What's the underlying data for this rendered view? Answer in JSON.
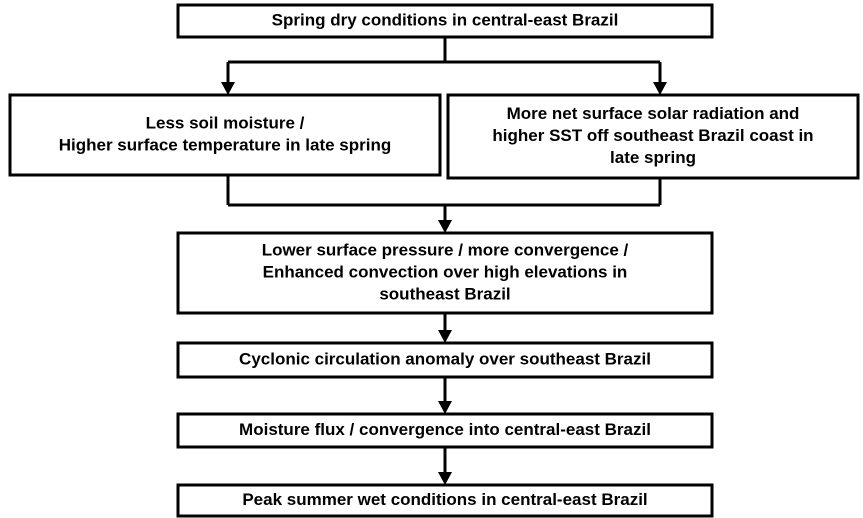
{
  "nodes": [
    {
      "lines": [
        "Spring dry conditions in central-east Brazil"
      ]
    },
    {
      "lines": [
        "Less soil moisture /",
        "Higher surface temperature in late spring"
      ]
    },
    {
      "lines": [
        "More net surface solar radiation and",
        "higher SST off southeast Brazil coast in",
        "late spring"
      ]
    },
    {
      "lines": [
        "Lower surface pressure / more convergence /",
        "Enhanced convection over high elevations in",
        "southeast Brazil"
      ]
    },
    {
      "lines": [
        "Cyclonic circulation anomaly over southeast Brazil"
      ]
    },
    {
      "lines": [
        "Moisture flux / convergence into central-east Brazil"
      ]
    },
    {
      "lines": [
        "Peak summer wet conditions in central-east Brazil"
      ]
    }
  ]
}
